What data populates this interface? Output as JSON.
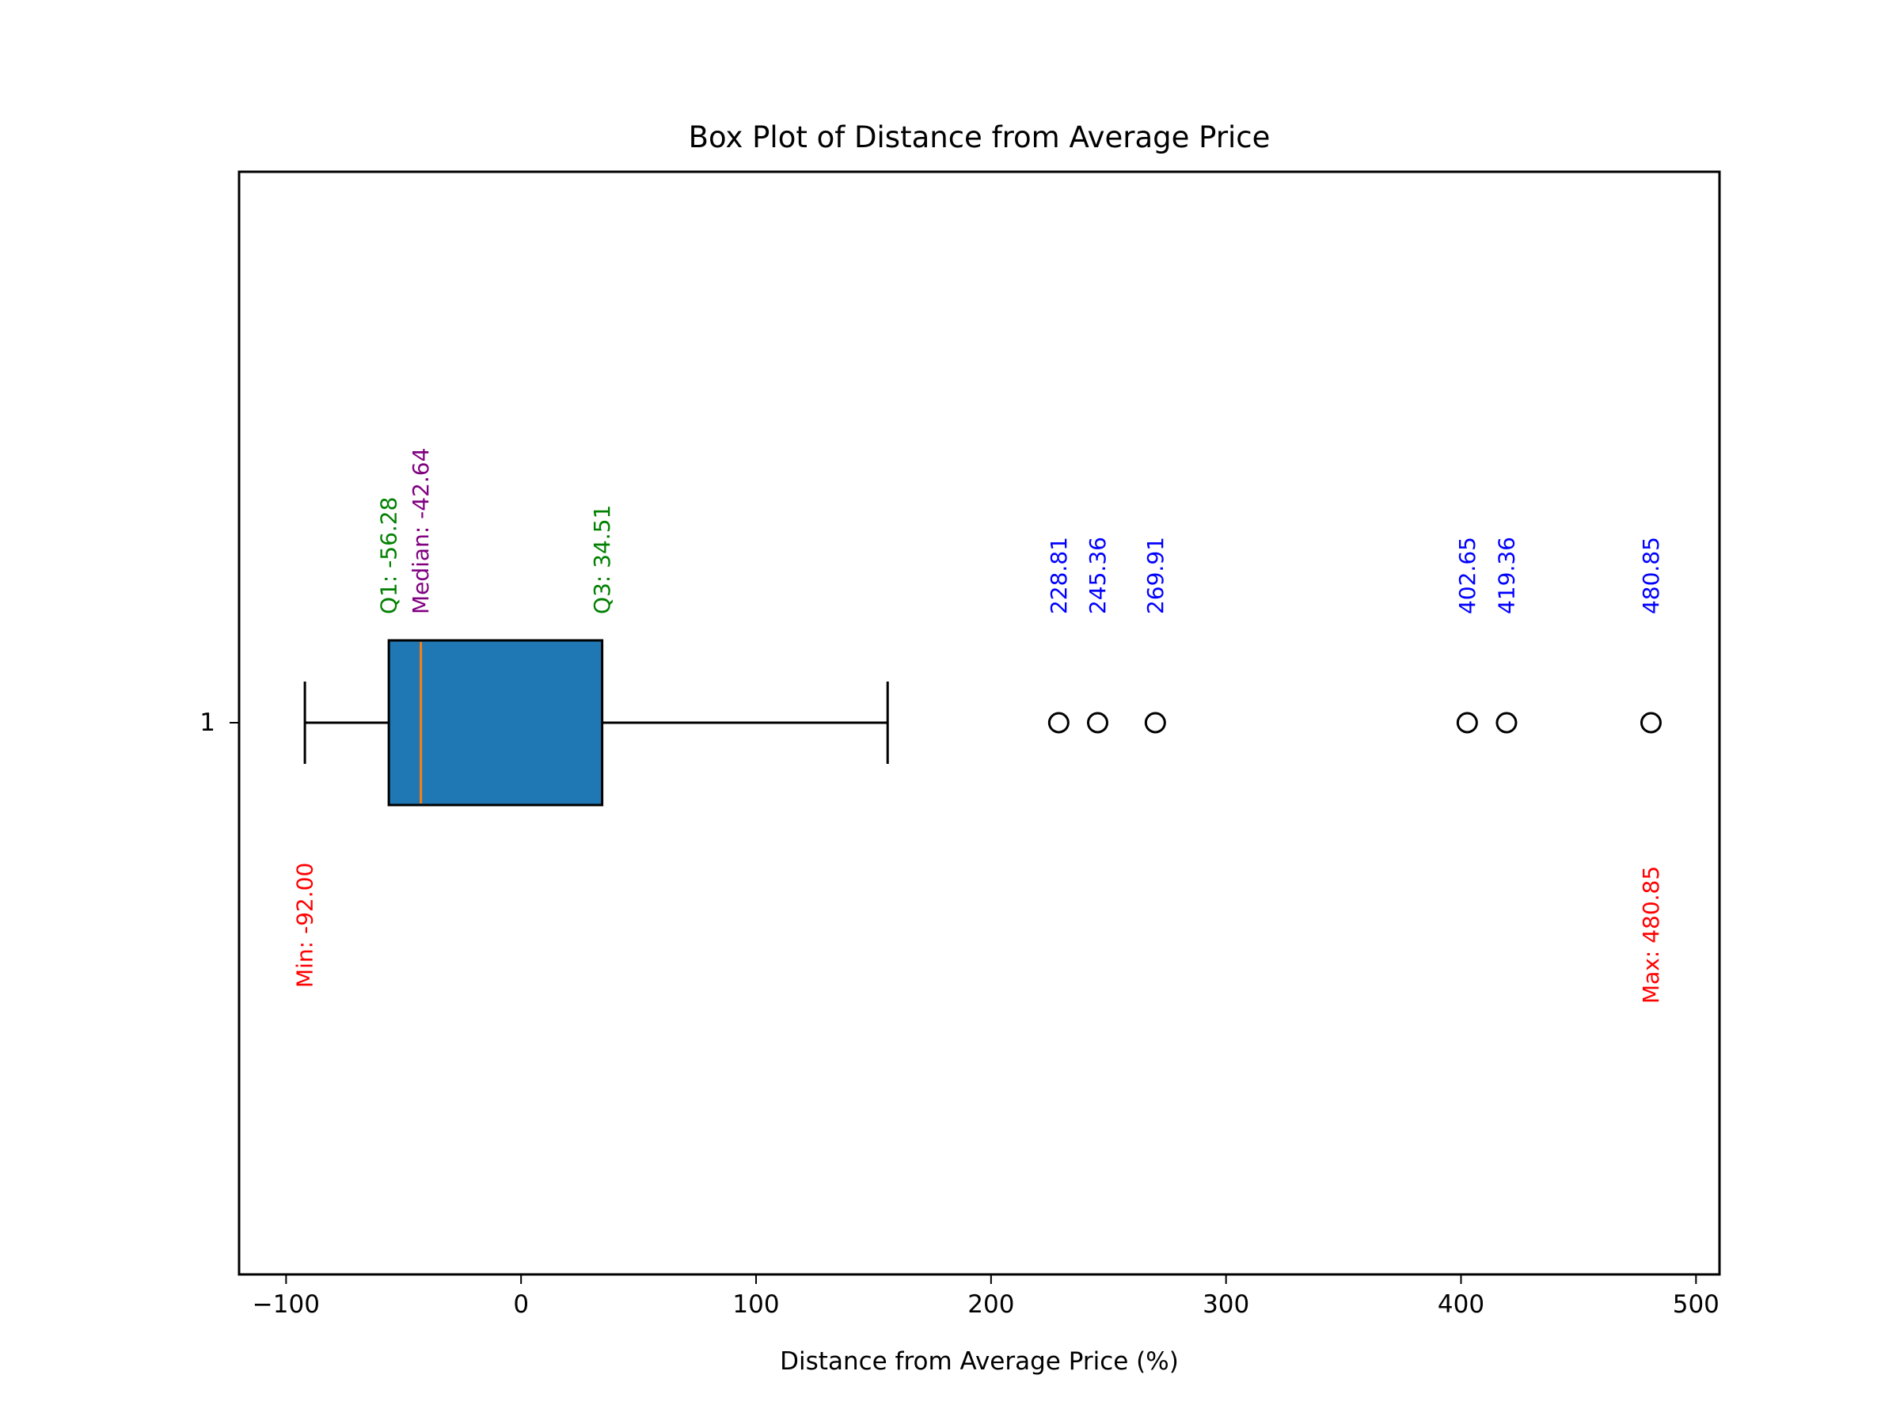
{
  "chart_data": {
    "type": "box",
    "orientation": "horizontal",
    "title": "Box Plot of Distance from Average Price",
    "xlabel": "Distance from Average Price (%)",
    "ylabel": "",
    "xlim": [
      -120,
      510
    ],
    "x_ticks": [
      -100,
      0,
      100,
      200,
      300,
      400,
      500
    ],
    "x_tick_labels": [
      "−100",
      "0",
      "100",
      "200",
      "300",
      "400",
      "500"
    ],
    "y_tick_labels": [
      "1"
    ],
    "grid": false,
    "series": [
      {
        "position": 1,
        "whisker_low": -92.0,
        "q1": -56.28,
        "median": -42.64,
        "q3": 34.51,
        "whisker_high": 156,
        "outliers": [
          228.81,
          245.36,
          269.91,
          402.65,
          419.36,
          480.85
        ]
      }
    ],
    "annotations": {
      "q1": "Q1: -56.28",
      "median": "Median: -42.64",
      "q3": "Q3: 34.51",
      "min": "Min: -92.00",
      "max": "Max: 480.85",
      "outliers": [
        "228.81",
        "245.36",
        "269.91",
        "402.65",
        "419.36",
        "480.85"
      ]
    },
    "colors": {
      "box_fill": "#1f77b4",
      "median_line": "#ff7f0e",
      "quartile_label": "#008000",
      "median_label": "#800080",
      "outlier_label": "#0000ff",
      "extreme_label": "#ff0000",
      "axes": "#000000"
    }
  }
}
